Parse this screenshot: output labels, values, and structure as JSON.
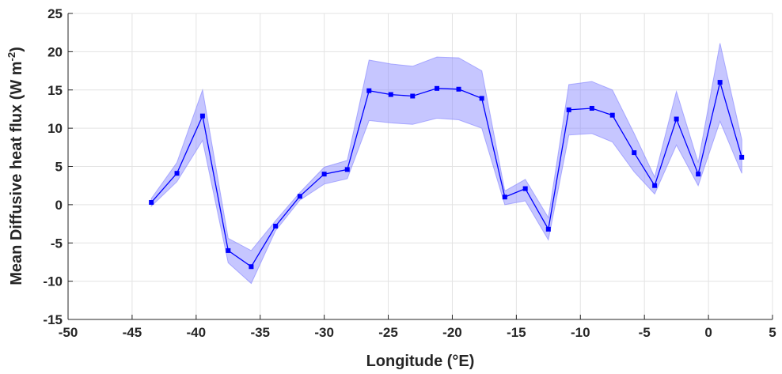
{
  "chart_data": {
    "type": "line",
    "xlabel": "Longitude (°E)",
    "ylabel_main": "Mean Diffusive heat flux (W m",
    "ylabel_sup": "-2",
    "ylabel_close": ")",
    "xlim": [
      -50,
      5
    ],
    "ylim": [
      -15,
      25
    ],
    "xticks": [
      -50,
      -45,
      -40,
      -35,
      -30,
      -25,
      -20,
      -15,
      -10,
      -5,
      0,
      5
    ],
    "yticks": [
      -15,
      -10,
      -5,
      0,
      5,
      10,
      15,
      20,
      25
    ],
    "grid": true,
    "colors": {
      "line": "#0000ff",
      "band": "#8080ff",
      "grid": "#e3e3e3",
      "axis": "#262626"
    },
    "series": [
      {
        "x": [
          -43.5,
          -41.5,
          -39.5,
          -37.5,
          -35.7,
          -33.8,
          -31.9,
          -30,
          -28.2,
          -26.5,
          -24.8,
          -23.1,
          -21.2,
          -19.5,
          -17.7,
          -15.9,
          -14.3,
          -12.5,
          -10.9,
          -9.1,
          -7.5,
          -5.8,
          -4.2,
          -2.5,
          -0.8,
          0.9,
          2.6
        ],
        "y": [
          0.3,
          4.1,
          11.6,
          -6.0,
          -8.1,
          -2.8,
          1.1,
          4.0,
          4.6,
          14.9,
          14.4,
          14.2,
          15.2,
          15.1,
          13.9,
          1.0,
          2.1,
          -3.2,
          12.4,
          12.6,
          11.7,
          6.8,
          2.5,
          11.2,
          4.0,
          16.0,
          6.2
        ],
        "lower": [
          -0.2,
          3.0,
          8.4,
          -7.6,
          -10.3,
          -3.4,
          0.6,
          2.7,
          3.4,
          11.0,
          10.7,
          10.5,
          11.3,
          11.1,
          10.0,
          0.0,
          0.5,
          -4.6,
          9.1,
          9.3,
          8.2,
          4.3,
          1.4,
          7.8,
          2.5,
          10.9,
          4.1
        ],
        "upper": [
          0.8,
          5.5,
          15.0,
          -4.4,
          -6.0,
          -2.1,
          1.6,
          4.9,
          5.8,
          18.9,
          18.4,
          18.1,
          19.3,
          19.2,
          17.5,
          1.8,
          3.3,
          -1.7,
          15.7,
          16.1,
          15.0,
          9.3,
          3.6,
          14.8,
          5.5,
          21.1,
          8.5
        ]
      }
    ]
  }
}
